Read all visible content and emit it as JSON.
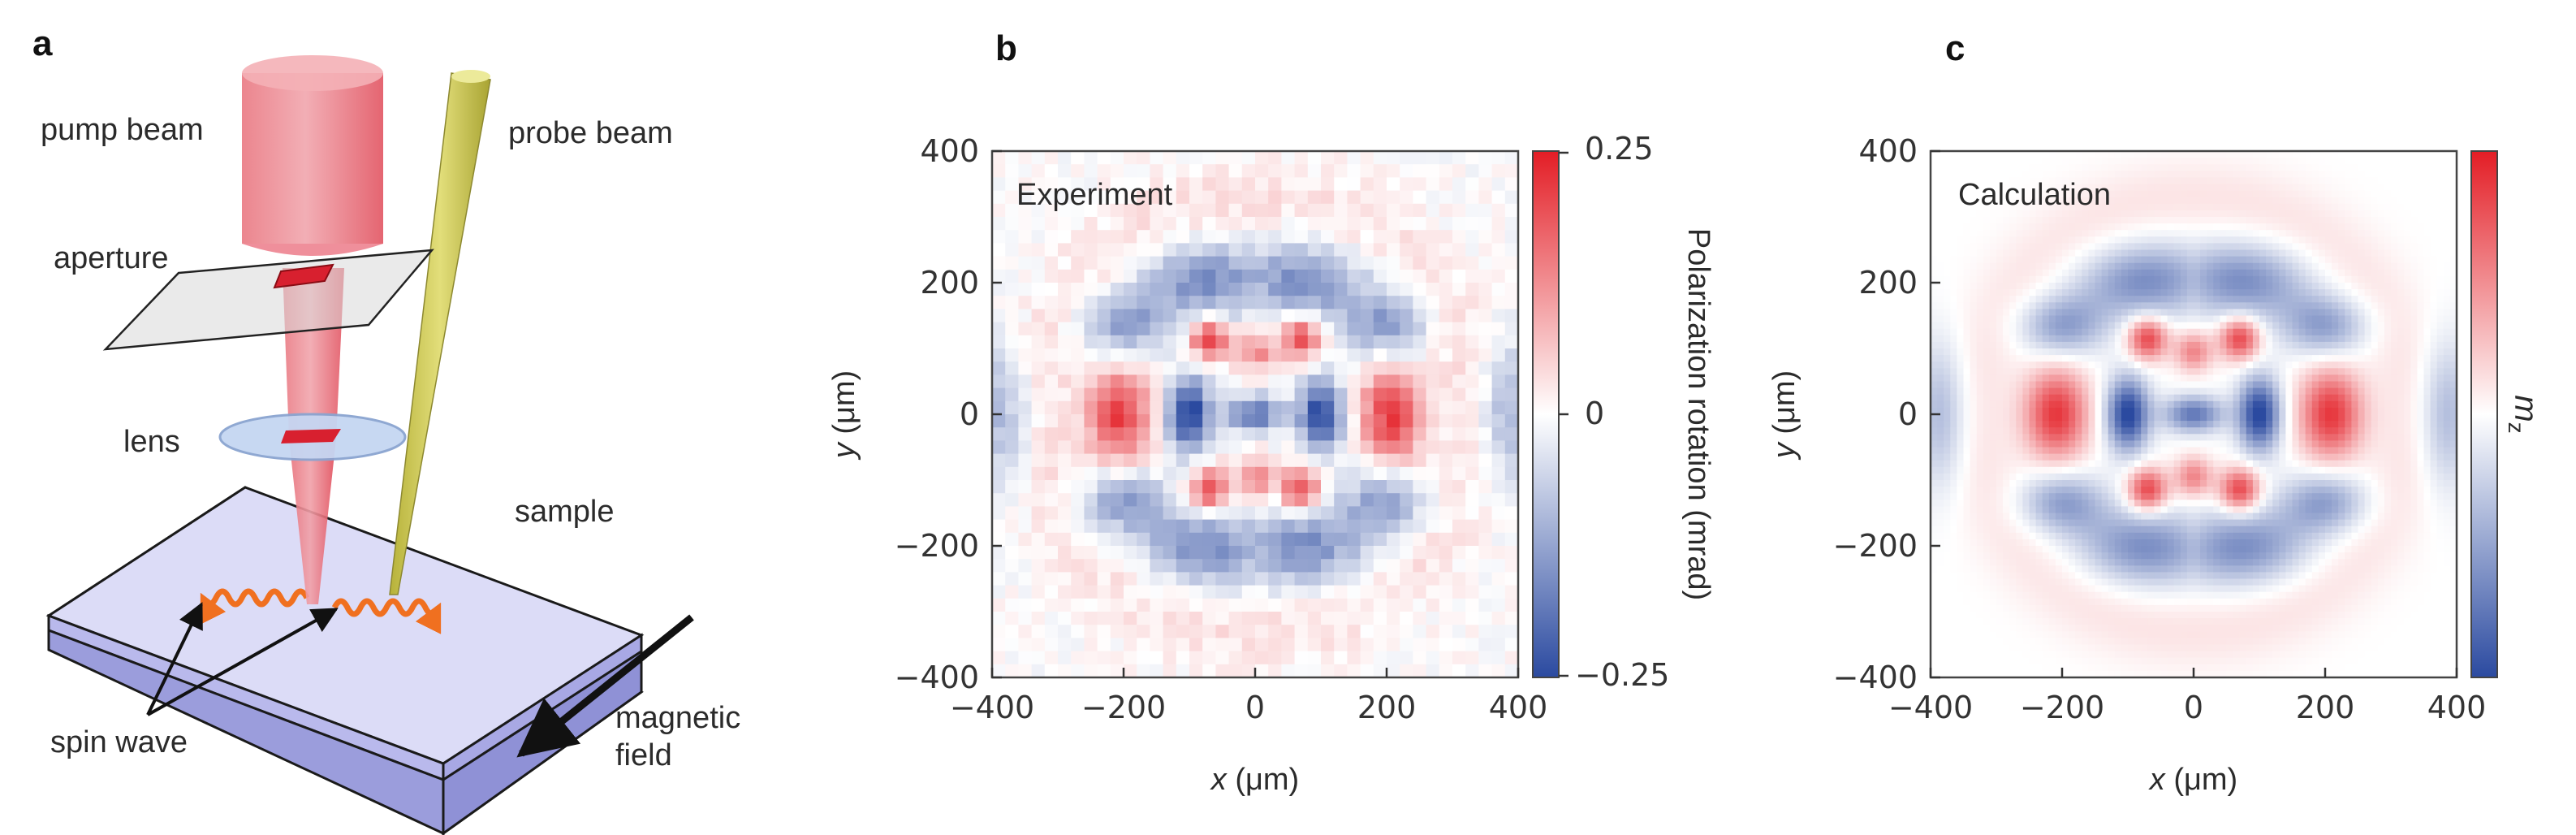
{
  "figure": {
    "panel_a": {
      "letter": "a",
      "labels": {
        "pump_beam": "pump beam",
        "probe_beam": "probe beam",
        "aperture": "aperture",
        "lens": "lens",
        "sample": "sample",
        "spin_wave": "spin wave",
        "magnetic_field_line1": "magnetic",
        "magnetic_field_line2": "field"
      }
    },
    "panel_b": {
      "letter": "b",
      "inset": "Experiment",
      "xlabel_var": "x",
      "xlabel_unit": " (μm)",
      "ylabel_var": "y",
      "ylabel_unit": " (μm)",
      "xticks": [
        "−400",
        "−200",
        "0",
        "200",
        "400"
      ],
      "yticks": [
        "400",
        "200",
        "0",
        "−200",
        "−400"
      ],
      "colorbar_ticks": [
        "0.25",
        "0",
        "−0.25"
      ],
      "colorbar_label": "Polarization rotation (mrad)"
    },
    "panel_c": {
      "letter": "c",
      "inset": "Calculation",
      "xlabel_var": "x",
      "xlabel_unit": " (μm)",
      "ylabel_var": "y",
      "ylabel_unit": " (μm)",
      "xticks": [
        "−400",
        "−200",
        "0",
        "200",
        "400"
      ],
      "yticks": [
        "400",
        "200",
        "0",
        "−200",
        "−400"
      ],
      "colorbar_label_var": "m",
      "colorbar_label_sub": "z"
    }
  },
  "chart_data": [
    {
      "type": "heatmap",
      "title": "Experiment",
      "xlabel": "x (μm)",
      "ylabel": "y (μm)",
      "xlim": [
        -400,
        400
      ],
      "ylim": [
        -400,
        400
      ],
      "colorbar_label": "Polarization rotation (mrad)",
      "colorbar_range": [
        -0.25,
        0.25
      ],
      "colormap": {
        "low": "#2b4aa0",
        "mid": "#ffffff",
        "high": "#e31d25"
      }
    },
    {
      "type": "heatmap",
      "title": "Calculation",
      "xlabel": "x (μm)",
      "ylabel": "y (μm)",
      "xlim": [
        -400,
        400
      ],
      "ylim": [
        -400,
        400
      ],
      "colorbar_label": "m_z",
      "colormap": {
        "low": "#2b4aa0",
        "mid": "#ffffff",
        "high": "#e31d25"
      }
    }
  ],
  "colors": {
    "pump": "#e8555f",
    "probe": "#c8c455",
    "wave": "#f07020",
    "sample": "#dcdcf7",
    "lens": "#bcd2f0"
  }
}
